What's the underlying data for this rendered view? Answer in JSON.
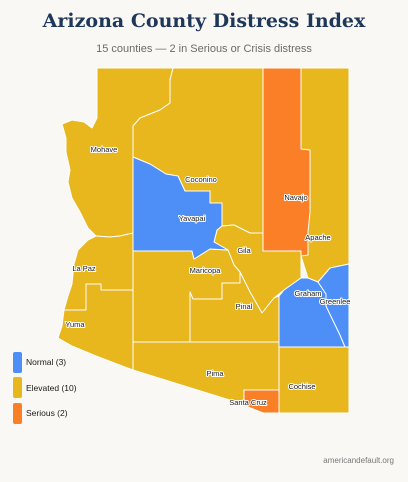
{
  "title": "Arizona County Distress Index",
  "subtitle": "15 counties — 2 in Serious or Crisis distress",
  "colors": {
    "normal": "#4d8ff6",
    "elevated": "#e8b61d",
    "serious": "#fb7f26"
  },
  "counties": [
    {
      "name": "Mohave",
      "status": "elevated"
    },
    {
      "name": "Coconino",
      "status": "elevated"
    },
    {
      "name": "Navajo",
      "status": "serious"
    },
    {
      "name": "Apache",
      "status": "elevated"
    },
    {
      "name": "Yavapai",
      "status": "normal"
    },
    {
      "name": "Gila",
      "status": "elevated"
    },
    {
      "name": "La Paz",
      "status": "elevated"
    },
    {
      "name": "Maricopa",
      "status": "elevated"
    },
    {
      "name": "Graham",
      "status": "normal"
    },
    {
      "name": "Greenlee",
      "status": "normal"
    },
    {
      "name": "Pinal",
      "status": "elevated"
    },
    {
      "name": "Yuma",
      "status": "elevated"
    },
    {
      "name": "Pima",
      "status": "elevated"
    },
    {
      "name": "Cochise",
      "status": "elevated"
    },
    {
      "name": "Santa Cruz",
      "status": "serious"
    }
  ],
  "legend": [
    {
      "label": "Normal (3)",
      "status": "normal"
    },
    {
      "label": "Elevated (10)",
      "status": "elevated"
    },
    {
      "label": "Serious (2)",
      "status": "serious"
    }
  ],
  "credit": "americandefault.org"
}
